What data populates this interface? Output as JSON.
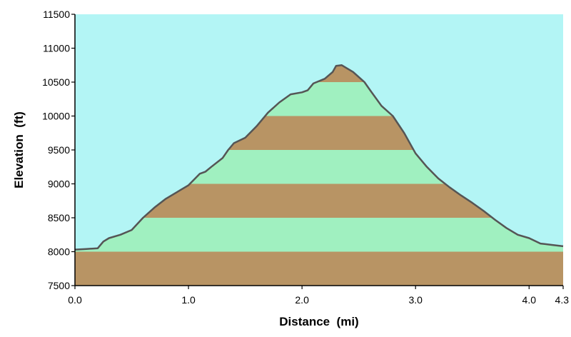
{
  "chart_data": {
    "type": "area",
    "title": "",
    "xlabel": "Distance  (mi)",
    "ylabel": "Elevation  (ft)",
    "xlim": [
      0.0,
      4.3
    ],
    "ylim": [
      7500,
      11500
    ],
    "x_ticks": [
      0.0,
      1.0,
      2.0,
      3.0,
      4.0,
      4.3
    ],
    "x_tick_labels": [
      "0.0",
      "1.0",
      "2.0",
      "3.0",
      "4.0",
      "4.3"
    ],
    "y_ticks": [
      7500,
      8000,
      8500,
      9000,
      9500,
      10000,
      10500,
      11000,
      11500
    ],
    "y_tick_labels": [
      "7500",
      "8000",
      "8500",
      "9000",
      "9500",
      "10000",
      "10500",
      "11000",
      "11500"
    ],
    "band_size": 500,
    "colors": {
      "sky": "#b3f5f5",
      "band_green": "#a0f0c0",
      "band_brown": "#b89464",
      "profile_line": "#555555",
      "axis": "#000000"
    },
    "series": [
      {
        "x": [
          0.0,
          0.1,
          0.2,
          0.25,
          0.3,
          0.4,
          0.5,
          0.6,
          0.7,
          0.8,
          0.9,
          1.0,
          1.1,
          1.15,
          1.2,
          1.3,
          1.35,
          1.4,
          1.5,
          1.6,
          1.7,
          1.8,
          1.9,
          2.0,
          2.05,
          2.1,
          2.2,
          2.27,
          2.3,
          2.35,
          2.45,
          2.55,
          2.6,
          2.7,
          2.8,
          2.9,
          3.0,
          3.1,
          3.2,
          3.3,
          3.4,
          3.5,
          3.6,
          3.7,
          3.8,
          3.9,
          4.0,
          4.1,
          4.2,
          4.3
        ],
        "y": [
          8030,
          8040,
          8050,
          8150,
          8200,
          8250,
          8320,
          8500,
          8650,
          8780,
          8880,
          8980,
          9150,
          9180,
          9250,
          9380,
          9500,
          9600,
          9680,
          9850,
          10050,
          10200,
          10320,
          10350,
          10380,
          10480,
          10550,
          10650,
          10740,
          10750,
          10650,
          10500,
          10380,
          10150,
          10000,
          9750,
          9450,
          9250,
          9080,
          8950,
          8830,
          8720,
          8600,
          8470,
          8350,
          8250,
          8200,
          8120,
          8100,
          8080
        ]
      }
    ]
  }
}
